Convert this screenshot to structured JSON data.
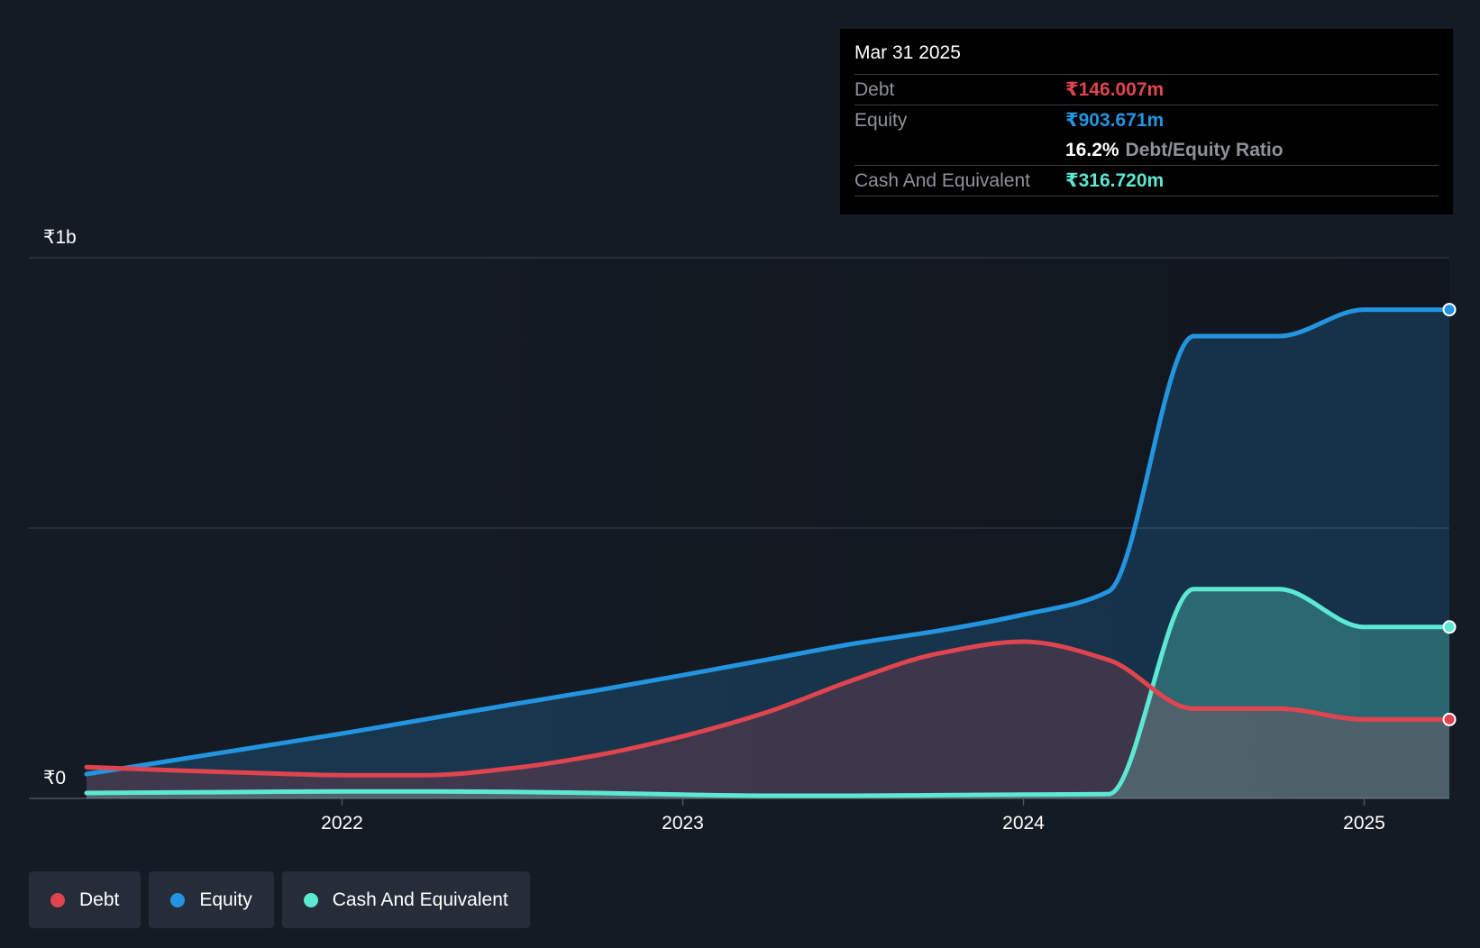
{
  "chart_data": {
    "type": "area",
    "title": "",
    "y_axis": {
      "min": 0,
      "max": 1000,
      "unit": "₹m",
      "tick_labels": [
        "₹0",
        "₹1b"
      ],
      "gridlines": [
        0,
        500,
        1000
      ]
    },
    "x_axis": {
      "min": 2021.25,
      "max": 2025.25,
      "tick_labels": [
        "2022",
        "2023",
        "2024",
        "2025"
      ],
      "ticks": [
        2022,
        2023,
        2024,
        2025
      ]
    },
    "series": [
      {
        "name": "Equity",
        "color": "#2394e0",
        "points": [
          [
            2021.25,
            45
          ],
          [
            2021.5,
            70
          ],
          [
            2021.75,
            95
          ],
          [
            2022.0,
            120
          ],
          [
            2022.25,
            147
          ],
          [
            2022.5,
            174
          ],
          [
            2022.75,
            200
          ],
          [
            2023.0,
            228
          ],
          [
            2023.25,
            257
          ],
          [
            2023.5,
            286
          ],
          [
            2023.75,
            310
          ],
          [
            2024.0,
            340
          ],
          [
            2024.25,
            383
          ],
          [
            2024.5,
            855
          ],
          [
            2024.75,
            855
          ],
          [
            2025.0,
            904
          ],
          [
            2025.25,
            904
          ]
        ]
      },
      {
        "name": "Cash And Equivalent",
        "color": "#5ce8d2",
        "points": [
          [
            2021.25,
            10
          ],
          [
            2021.5,
            11
          ],
          [
            2021.75,
            12
          ],
          [
            2022.0,
            13
          ],
          [
            2022.25,
            13
          ],
          [
            2022.5,
            12
          ],
          [
            2022.75,
            10
          ],
          [
            2023.0,
            7
          ],
          [
            2023.25,
            5
          ],
          [
            2023.5,
            5
          ],
          [
            2023.75,
            6
          ],
          [
            2024.0,
            7
          ],
          [
            2024.25,
            8
          ],
          [
            2024.5,
            387
          ],
          [
            2024.75,
            387
          ],
          [
            2025.0,
            317
          ],
          [
            2025.25,
            317
          ]
        ]
      },
      {
        "name": "Debt",
        "color": "#e0444f",
        "points": [
          [
            2021.25,
            58
          ],
          [
            2021.5,
            52
          ],
          [
            2021.75,
            47
          ],
          [
            2022.0,
            43
          ],
          [
            2022.25,
            43
          ],
          [
            2022.5,
            56
          ],
          [
            2022.75,
            80
          ],
          [
            2023.0,
            115
          ],
          [
            2023.25,
            160
          ],
          [
            2023.5,
            219
          ],
          [
            2023.75,
            268
          ],
          [
            2024.0,
            290
          ],
          [
            2024.25,
            256
          ],
          [
            2024.5,
            166
          ],
          [
            2024.75,
            166
          ],
          [
            2025.0,
            146
          ],
          [
            2025.25,
            146
          ]
        ]
      }
    ]
  },
  "axis": {
    "y_top_label": "₹1b",
    "y_bottom_label": "₹0"
  },
  "tooltip": {
    "date": "Mar 31 2025",
    "debt_label": "Debt",
    "debt_value": "₹146.007m",
    "equity_label": "Equity",
    "equity_value": "₹903.671m",
    "ratio_value": "16.2%",
    "ratio_label": "Debt/Equity Ratio",
    "cash_label": "Cash And Equivalent",
    "cash_value": "₹316.720m"
  },
  "legend": {
    "debt": "Debt",
    "equity": "Equity",
    "cash": "Cash And Equivalent"
  },
  "colors": {
    "debt": "#e0444f",
    "equity": "#2394e0",
    "cash": "#5ce8d2",
    "background": "#151b24"
  }
}
